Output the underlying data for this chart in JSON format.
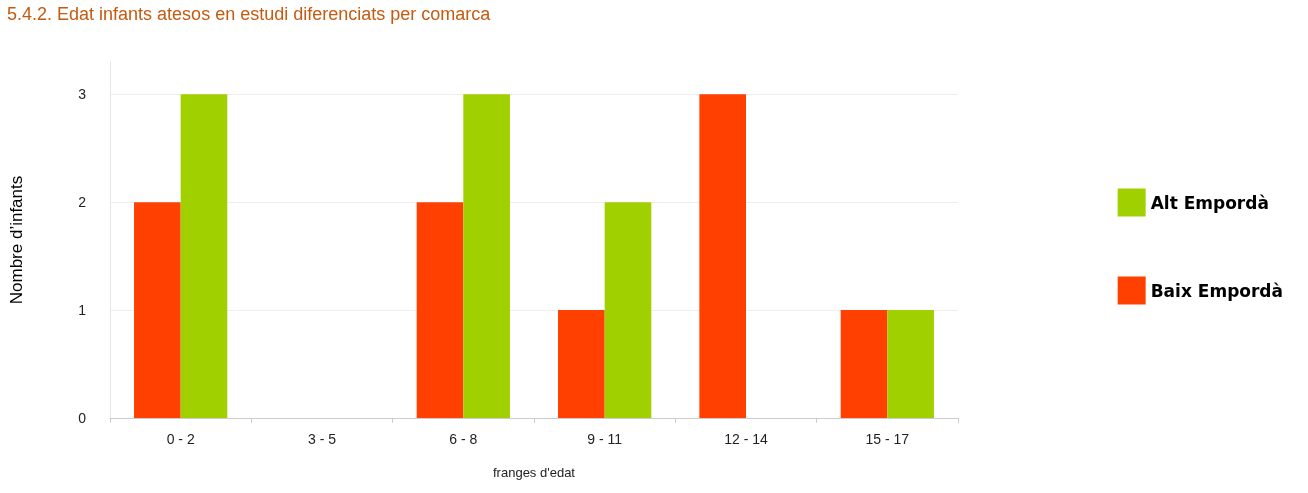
{
  "chart_data": {
    "type": "bar",
    "title": "5.4.2. Edat infants atesos en estudi diferenciats per comarca",
    "xlabel": "franges d'edat",
    "ylabel": "Nombre d’infants",
    "categories": [
      "0 - 2",
      "3 - 5",
      "6 - 8",
      "9 - 11",
      "12 - 14",
      "15 - 17"
    ],
    "series": [
      {
        "name": "Baix Empordà",
        "color": "#ff4000",
        "values": [
          2,
          0,
          2,
          1,
          3,
          1
        ]
      },
      {
        "name": "Alt Empordà",
        "color": "#a0d000",
        "values": [
          3,
          0,
          3,
          2,
          0,
          1
        ]
      }
    ],
    "ylim": [
      0,
      3.3
    ],
    "yticks": [
      0,
      1,
      2,
      3
    ],
    "grid": "y",
    "legend": "right"
  }
}
